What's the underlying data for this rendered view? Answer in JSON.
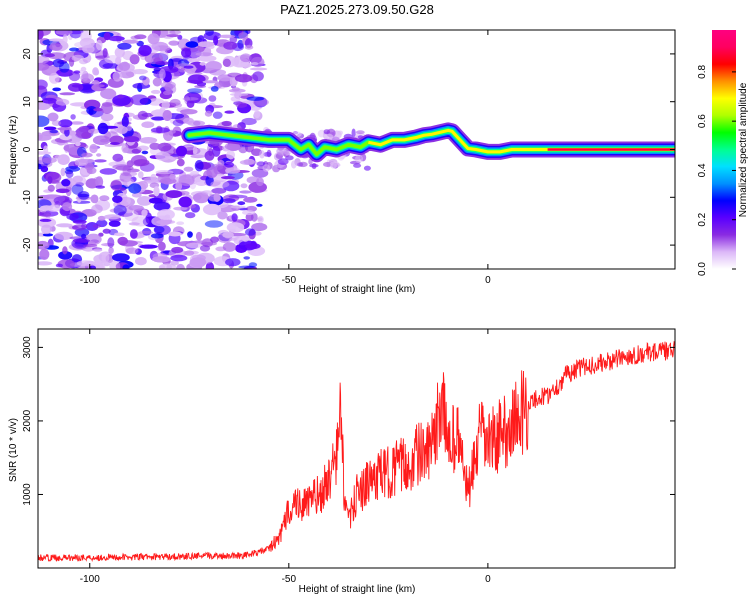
{
  "title": "PAZ1.2025.273.09.50.G28",
  "chart_data": [
    {
      "type": "heatmap",
      "title": "PAZ1.2025.273.09.50.G28",
      "xlabel": "Height of straight line (km)",
      "ylabel": "Frequency (Hz)",
      "xlim": [
        -113,
        47
      ],
      "ylim": [
        -25,
        25
      ],
      "xticks": [
        -100,
        -50,
        0
      ],
      "xtick_labels": [
        "-100",
        "-50",
        "0"
      ],
      "yticks": [
        -20,
        -10,
        0,
        10,
        20
      ],
      "ytick_labels": [
        "-20",
        "-10",
        "0",
        "10",
        "20"
      ],
      "colorbar": {
        "label": "Normalized spectral amplitude",
        "range": [
          0,
          0.97
        ],
        "ticks": [
          0,
          0.2,
          0.4,
          0.6,
          0.8
        ],
        "tick_labels": [
          "0.0",
          "0.2",
          "0.4",
          "0.6",
          "0.8"
        ],
        "colormap": [
          "#ffffff",
          "#dcb8f8",
          "#8a2be2",
          "#5a00ff",
          "#0000ff",
          "#0090ff",
          "#00e0ff",
          "#00ff90",
          "#00ff00",
          "#b0ff00",
          "#ffff00",
          "#ff9000",
          "#ff0000",
          "#ff0060",
          "#ff0080"
        ]
      },
      "ridge": {
        "note": "dominant frequency track (Hz) vs height (km)",
        "x": [
          -75,
          -70,
          -65,
          -60,
          -55,
          -50,
          -47,
          -45,
          -43,
          -41,
          -38,
          -35,
          -32,
          -30,
          -27,
          -24,
          -21,
          -18,
          -16,
          -14,
          -12,
          -10,
          -9,
          -7,
          -5,
          -3,
          0,
          3,
          6,
          9,
          12,
          15,
          20,
          30,
          40,
          47
        ],
        "y": [
          3,
          3.5,
          3,
          2.5,
          2,
          2,
          0,
          1,
          -1,
          0.5,
          0,
          1,
          0.5,
          1.5,
          1,
          2,
          2,
          2.5,
          3,
          3.2,
          3.6,
          4,
          3.8,
          2,
          0.2,
          0,
          -0.5,
          -0.5,
          0,
          0,
          0,
          0,
          0,
          0,
          0,
          0
        ]
      }
    },
    {
      "type": "line",
      "xlabel": "Height of straight line (km)",
      "ylabel": "SNR (10 * v/v)",
      "xlim": [
        -113,
        47
      ],
      "ylim": [
        0,
        3250
      ],
      "xticks": [
        -100,
        -50,
        0
      ],
      "xtick_labels": [
        "-100",
        "-50",
        "0"
      ],
      "yticks": [
        1000,
        2000,
        3000
      ],
      "ytick_labels": [
        "1000",
        "2000",
        "3000"
      ],
      "color": "#ff1a1a",
      "series": [
        {
          "name": "SNR",
          "x": [
            -113,
            -105,
            -95,
            -85,
            -75,
            -65,
            -60,
            -55,
            -52,
            -50,
            -48,
            -46,
            -44,
            -42,
            -40,
            -38,
            -37,
            -36,
            -35,
            -33,
            -30,
            -28,
            -25,
            -22,
            -20,
            -18,
            -15,
            -13,
            -12,
            -11,
            -10,
            -9,
            -8,
            -7,
            -6,
            -5,
            -4,
            -2,
            0,
            3,
            6,
            9,
            12,
            15,
            18,
            20,
            25,
            30,
            35,
            40,
            44,
            47
          ],
          "y": [
            140,
            140,
            145,
            150,
            160,
            170,
            180,
            260,
            450,
            800,
            900,
            850,
            950,
            1000,
            1200,
            1500,
            2200,
            900,
            600,
            1000,
            1150,
            1250,
            1300,
            1400,
            1350,
            1550,
            1550,
            1800,
            2300,
            2050,
            1800,
            1750,
            1800,
            1650,
            1350,
            1000,
            1250,
            1800,
            1700,
            1800,
            1950,
            2150,
            2300,
            2350,
            2500,
            2650,
            2750,
            2800,
            2880,
            2930,
            2950,
            2950
          ]
        }
      ]
    }
  ]
}
